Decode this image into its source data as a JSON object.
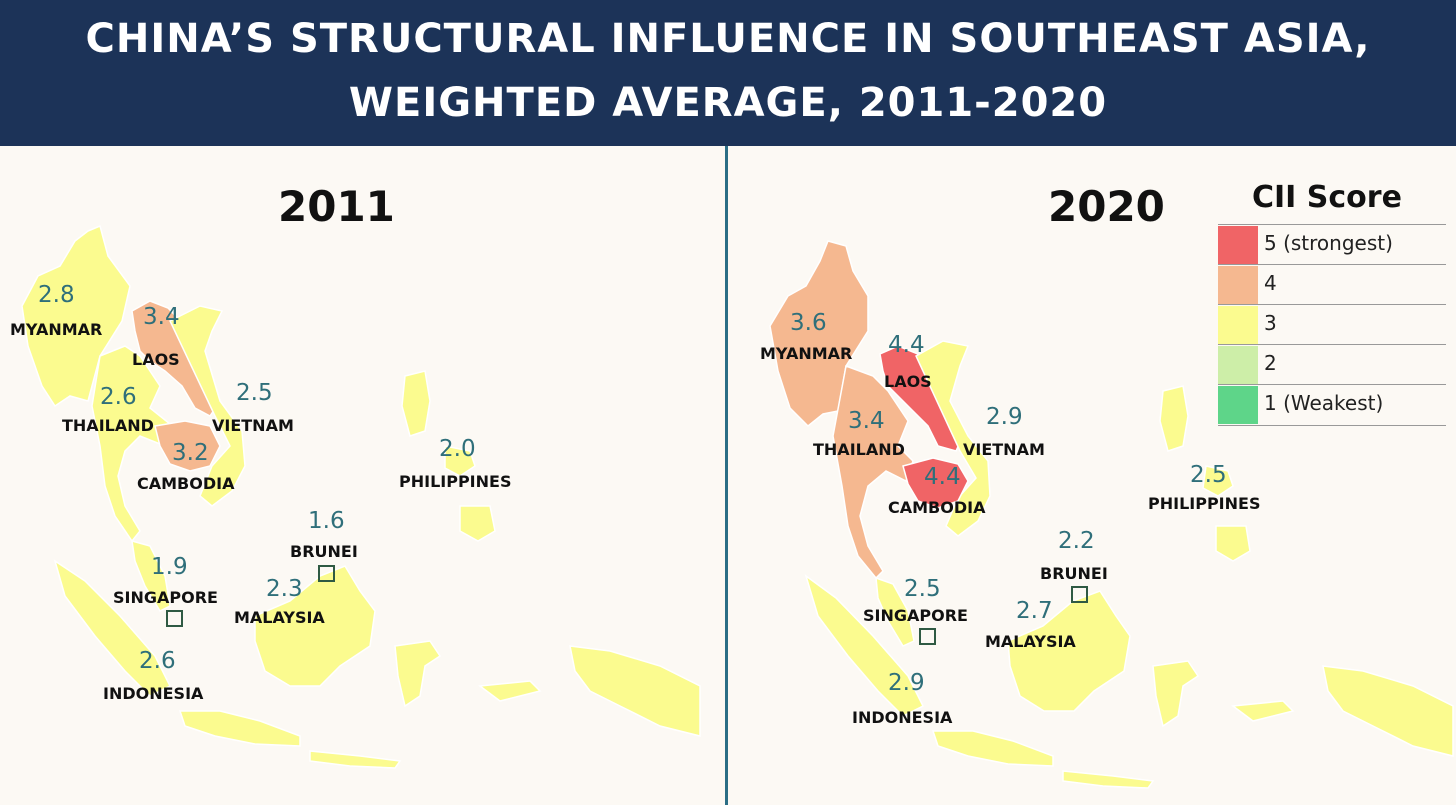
{
  "header": {
    "title_line1": "CHINA’S STRUCTURAL INFLUENCE IN SOUTHEAST ASIA,",
    "title_line2": "WEIGHTED AVERAGE, 2011-2020"
  },
  "colors": {
    "header_bg": "#1c3358",
    "divider": "#2b6e86",
    "score_text": "#2f6f7a",
    "score_5": "#f06466",
    "score_4": "#f5b890",
    "score_3": "#fbfb8f",
    "score_2": "#cdeea8",
    "score_1": "#5ed589"
  },
  "panels": [
    {
      "year": "2011",
      "countries": [
        {
          "name": "MYANMAR",
          "score": "2.8"
        },
        {
          "name": "LAOS",
          "score": "3.4"
        },
        {
          "name": "THAILAND",
          "score": "2.6"
        },
        {
          "name": "VIETNAM",
          "score": "2.5"
        },
        {
          "name": "CAMBODIA",
          "score": "3.2"
        },
        {
          "name": "PHILIPPINES",
          "score": "2.0"
        },
        {
          "name": "BRUNEI",
          "score": "1.6"
        },
        {
          "name": "SINGAPORE",
          "score": "1.9"
        },
        {
          "name": "MALAYSIA",
          "score": "2.3"
        },
        {
          "name": "INDONESIA",
          "score": "2.6"
        }
      ]
    },
    {
      "year": "2020",
      "countries": [
        {
          "name": "MYANMAR",
          "score": "3.6"
        },
        {
          "name": "LAOS",
          "score": "4.4"
        },
        {
          "name": "THAILAND",
          "score": "3.4"
        },
        {
          "name": "VIETNAM",
          "score": "2.9"
        },
        {
          "name": "CAMBODIA",
          "score": "4.4"
        },
        {
          "name": "PHILIPPINES",
          "score": "2.5"
        },
        {
          "name": "BRUNEI",
          "score": "2.2"
        },
        {
          "name": "SINGAPORE",
          "score": "2.5"
        },
        {
          "name": "MALAYSIA",
          "score": "2.7"
        },
        {
          "name": "INDONESIA",
          "score": "2.9"
        }
      ]
    }
  ],
  "legend": {
    "title": "CII Score",
    "items": [
      {
        "label": "5 (strongest)",
        "color": "#f06466"
      },
      {
        "label": "4",
        "color": "#f5b890"
      },
      {
        "label": "3",
        "color": "#fbfb8f"
      },
      {
        "label": "2",
        "color": "#cdeea8"
      },
      {
        "label": "1 (Weakest)",
        "color": "#5ed589"
      }
    ]
  }
}
